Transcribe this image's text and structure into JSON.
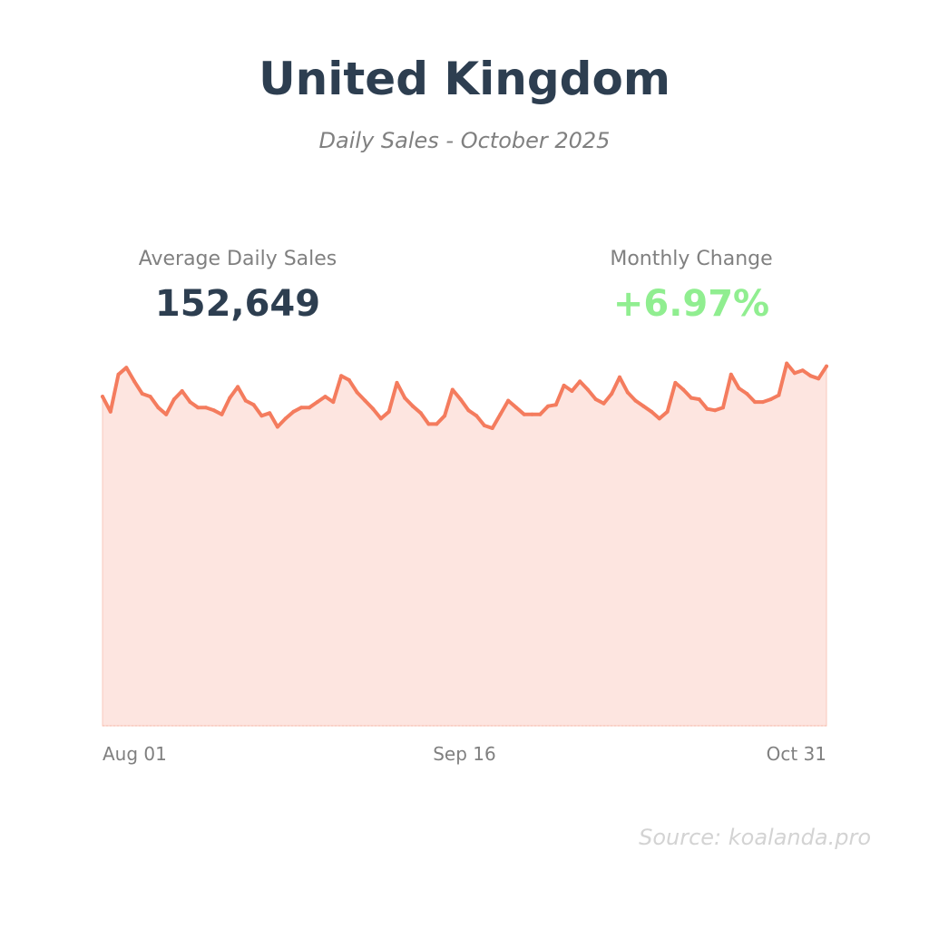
{
  "header": {
    "title": "United Kingdom",
    "subtitle": "Daily Sales - October 2025"
  },
  "stats": {
    "average": {
      "label": "Average Daily Sales",
      "value": "152,649",
      "color": "#2d3e50"
    },
    "change": {
      "label": "Monthly Change",
      "value": "+6.97%",
      "color": "#90ee90"
    }
  },
  "source": "Source: koalanda.pro",
  "chart_data": {
    "type": "area",
    "title": "",
    "xlabel": "",
    "ylabel": "",
    "grid": false,
    "legend": "none",
    "line_color": "#f47c5e",
    "fill_color": "#fde5e0",
    "x_start": "Aug 01",
    "x_end": "Oct 31",
    "x_tick_labels": [
      "Aug 01",
      "Sep 16",
      "Oct 31"
    ],
    "ylim": [
      0,
      270
    ],
    "values": [
      239,
      228,
      255,
      260,
      250,
      241,
      239,
      231,
      226,
      237,
      243,
      235,
      231,
      231,
      229,
      226,
      238,
      246,
      236,
      233,
      225,
      227,
      217,
      223,
      228,
      231,
      231,
      235,
      239,
      235,
      254,
      251,
      242,
      236,
      230,
      223,
      228,
      249,
      238,
      232,
      227,
      219,
      219,
      225,
      244,
      237,
      229,
      225,
      218,
      216,
      226,
      236,
      231,
      226,
      226,
      226,
      232,
      233,
      247,
      243,
      250,
      244,
      237,
      234,
      241,
      253,
      242,
      236,
      232,
      228,
      223,
      228,
      249,
      244,
      238,
      237,
      230,
      229,
      231,
      255,
      245,
      241,
      235,
      235,
      237,
      240,
      263,
      256,
      258,
      254,
      252,
      261
    ]
  }
}
